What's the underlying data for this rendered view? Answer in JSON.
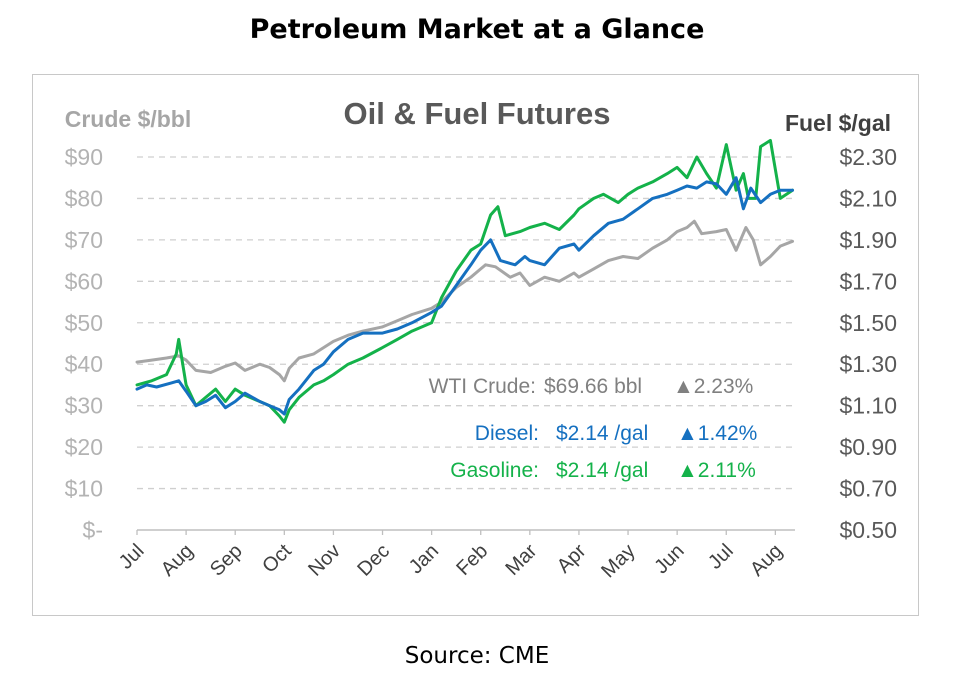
{
  "page": {
    "title": "Petroleum Market at a Glance",
    "source": "Source: CME"
  },
  "colors": {
    "crude": "#a6a6a6",
    "diesel": "#1570c0",
    "gasoline": "#14b24a",
    "grid": "#cfcfcf",
    "axis": "#bfbfbf"
  },
  "chart_data": {
    "type": "line",
    "title": "Oil & Fuel Futures",
    "ylabel_left": "Crude $/bbl",
    "ylabel_right": "Fuel $/gal",
    "grid": true,
    "ylim_left": [
      0,
      90
    ],
    "ylim_right": [
      0.5,
      2.3
    ],
    "yticks_left": [
      "$-",
      "$10",
      "$20",
      "$30",
      "$40",
      "$50",
      "$60",
      "$70",
      "$80",
      "$90"
    ],
    "yticks_right": [
      "$0.50",
      "$0.70",
      "$0.90",
      "$1.10",
      "$1.30",
      "$1.50",
      "$1.70",
      "$1.90",
      "$2.10",
      "$2.30"
    ],
    "x_categories": [
      "Jul",
      "Aug",
      "Sep",
      "Oct",
      "Nov",
      "Dec",
      "Jan",
      "Feb",
      "Mar",
      "Apr",
      "May",
      "Jun",
      "Jul",
      "Aug"
    ],
    "annotations": [
      {
        "label": "WTI Crude:",
        "value": "$69.66 bbl",
        "change": "▲2.23%"
      },
      {
        "label": "Diesel:",
        "value": "$2.14 /gal",
        "change": "▲1.42%"
      },
      {
        "label": "Gasoline:",
        "value": "$2.14 /gal",
        "change": "▲2.11%"
      }
    ],
    "series": [
      {
        "axis": "left",
        "x": [
          0,
          0.3,
          0.6,
          0.85,
          1.0,
          1.2,
          1.5,
          1.8,
          2.0,
          2.2,
          2.5,
          2.7,
          2.9,
          3.0,
          3.1,
          3.3,
          3.6,
          3.8,
          4.0,
          4.3,
          4.6,
          5.0,
          5.3,
          5.6,
          6.0,
          6.2,
          6.5,
          6.8,
          7.0,
          7.1,
          7.3,
          7.6,
          7.8,
          8.0,
          8.3,
          8.6,
          8.9,
          9.0,
          9.3,
          9.6,
          9.9,
          10.2,
          10.5,
          10.8,
          11.0,
          11.2,
          11.35,
          11.5,
          11.8,
          12.0,
          12.2,
          12.4,
          12.55,
          12.7,
          12.9,
          13.1,
          13.35
        ],
        "values": [
          40.5,
          41,
          41.5,
          42,
          41,
          38.5,
          38,
          39.5,
          40.3,
          38.5,
          40,
          39.2,
          37.5,
          36,
          39,
          41.5,
          42.5,
          44,
          45.5,
          47,
          48,
          49,
          50.5,
          52,
          53.5,
          55,
          58.5,
          61,
          63,
          64,
          63.5,
          61,
          62,
          59,
          61,
          60,
          62,
          61,
          63,
          65,
          66,
          65.5,
          68,
          70,
          72,
          73,
          74.5,
          71.5,
          72,
          72.5,
          67.5,
          73,
          70,
          64,
          66,
          68.5,
          69.66
        ]
      },
      {
        "axis": "right",
        "x": [
          0,
          0.2,
          0.4,
          0.7,
          0.85,
          1.0,
          1.2,
          1.4,
          1.6,
          1.8,
          2.0,
          2.2,
          2.5,
          2.7,
          2.9,
          3.0,
          3.1,
          3.3,
          3.6,
          3.8,
          4.0,
          4.3,
          4.6,
          5.0,
          5.3,
          5.6,
          6.0,
          6.2,
          6.5,
          6.8,
          7.0,
          7.2,
          7.4,
          7.7,
          7.9,
          8.0,
          8.3,
          8.6,
          8.9,
          9.0,
          9.3,
          9.6,
          9.9,
          10.2,
          10.5,
          10.8,
          11.0,
          11.2,
          11.4,
          11.6,
          11.8,
          12.0,
          12.2,
          12.35,
          12.5,
          12.7,
          12.9,
          13.1,
          13.35
        ],
        "values": [
          1.18,
          1.2,
          1.19,
          1.21,
          1.22,
          1.17,
          1.1,
          1.12,
          1.15,
          1.09,
          1.12,
          1.16,
          1.12,
          1.1,
          1.08,
          1.06,
          1.13,
          1.18,
          1.27,
          1.3,
          1.36,
          1.42,
          1.45,
          1.45,
          1.47,
          1.5,
          1.55,
          1.58,
          1.68,
          1.78,
          1.85,
          1.9,
          1.8,
          1.78,
          1.82,
          1.8,
          1.78,
          1.86,
          1.88,
          1.85,
          1.92,
          1.98,
          2.0,
          2.05,
          2.1,
          2.12,
          2.14,
          2.16,
          2.15,
          2.18,
          2.17,
          2.12,
          2.2,
          2.05,
          2.15,
          2.08,
          2.12,
          2.14,
          2.14
        ]
      },
      {
        "axis": "right",
        "x": [
          0,
          0.3,
          0.6,
          0.8,
          0.85,
          1.0,
          1.2,
          1.4,
          1.6,
          1.8,
          2.0,
          2.2,
          2.5,
          2.7,
          2.9,
          3.0,
          3.1,
          3.3,
          3.6,
          3.8,
          4.0,
          4.3,
          4.6,
          5.0,
          5.3,
          5.6,
          6.0,
          6.2,
          6.5,
          6.8,
          7.0,
          7.2,
          7.35,
          7.5,
          7.8,
          8.0,
          8.3,
          8.6,
          8.9,
          9.0,
          9.3,
          9.5,
          9.8,
          10.0,
          10.2,
          10.5,
          10.8,
          11.0,
          11.2,
          11.4,
          11.6,
          11.8,
          12.0,
          12.2,
          12.35,
          12.45,
          12.6,
          12.7,
          12.9,
          13.1,
          13.35
        ],
        "values": [
          1.2,
          1.22,
          1.25,
          1.35,
          1.42,
          1.2,
          1.1,
          1.14,
          1.18,
          1.12,
          1.18,
          1.15,
          1.12,
          1.1,
          1.05,
          1.02,
          1.08,
          1.14,
          1.2,
          1.22,
          1.25,
          1.3,
          1.33,
          1.38,
          1.42,
          1.46,
          1.5,
          1.62,
          1.75,
          1.85,
          1.88,
          2.02,
          2.06,
          1.92,
          1.94,
          1.96,
          1.98,
          1.95,
          2.02,
          2.05,
          2.1,
          2.12,
          2.08,
          2.12,
          2.15,
          2.18,
          2.22,
          2.25,
          2.2,
          2.3,
          2.22,
          2.15,
          2.36,
          2.14,
          2.22,
          2.1,
          2.1,
          2.35,
          2.38,
          2.1,
          2.14
        ]
      }
    ]
  }
}
